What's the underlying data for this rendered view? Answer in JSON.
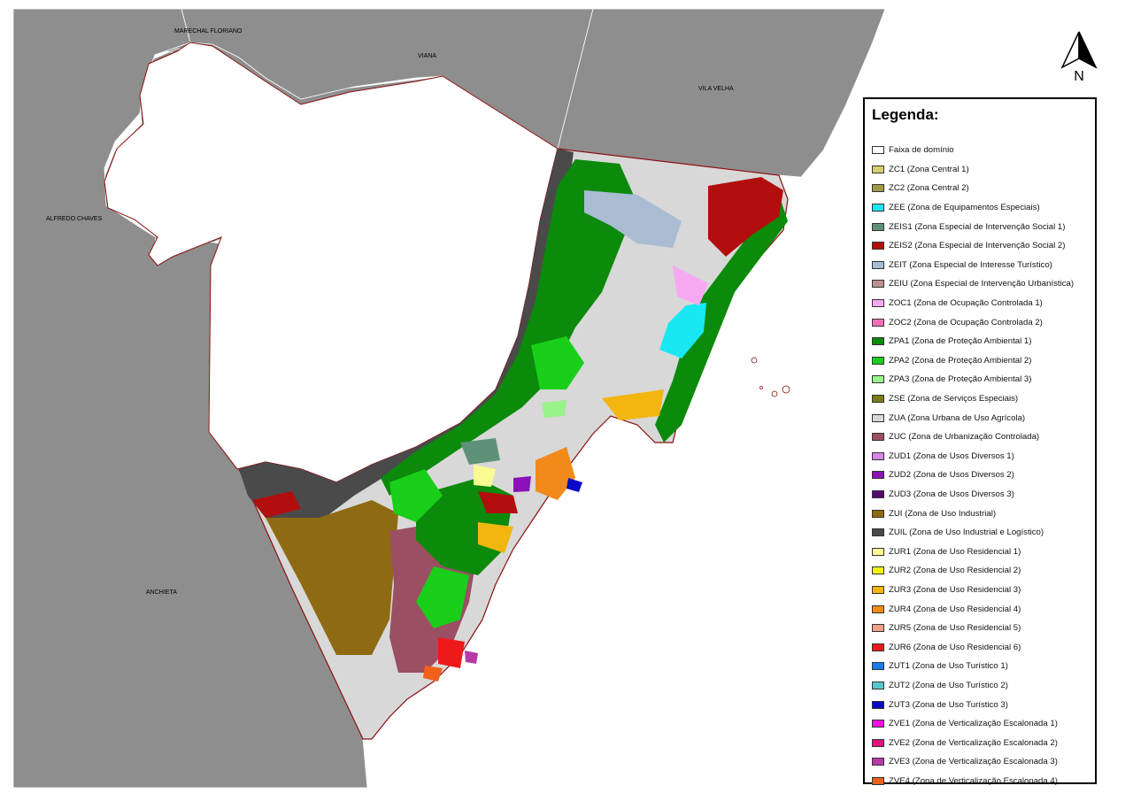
{
  "municipalities": [
    {
      "name": "MARECHAL FLORIANO",
      "id": "marechal-floriano"
    },
    {
      "name": "VIANA",
      "id": "viana"
    },
    {
      "name": "VILA VELHA",
      "id": "vila-velha"
    },
    {
      "name": "ALFREDO CHAVES",
      "id": "alfredo-chaves"
    },
    {
      "name": "ANCHIETA",
      "id": "anchieta"
    }
  ],
  "north_arrow": {
    "label": "N",
    "icon": "north-arrow-icon"
  },
  "legend": {
    "title": "Legenda:",
    "items": [
      {
        "label": "Faixa de domínio",
        "color": "#ffffff"
      },
      {
        "label": "ZC1 (Zona Central 1)",
        "color": "#d4cf72"
      },
      {
        "label": "ZC2 (Zona Central 2)",
        "color": "#9e9a48"
      },
      {
        "label": "ZEE (Zona de Equipamentos Especiais)",
        "color": "#19e8f2"
      },
      {
        "label": "ZEIS1 (Zona Especial de Intervenção Social 1)",
        "color": "#5e9278"
      },
      {
        "label": "ZEIS2 (Zona Especial de Intervenção Social 2)",
        "color": "#b20e0e"
      },
      {
        "label": "ZEIT (Zona Especial de Interesse Turístico)",
        "color": "#a9bcd2"
      },
      {
        "label": "ZEIU (Zona Especial de Intervenção Urbanística)",
        "color": "#c09090"
      },
      {
        "label": "ZOC1 (Zona de Ocupação Controlada 1)",
        "color": "#f6a9f2"
      },
      {
        "label": "ZOC2 (Zona de Ocupação Controlada 2)",
        "color": "#f070b8"
      },
      {
        "label": "ZPA1 (Zona de Proteção Ambiental 1)",
        "color": "#0b8a0b"
      },
      {
        "label": "ZPA2 (Zona de Proteção Ambiental 2)",
        "color": "#19cf19"
      },
      {
        "label": "ZPA3 (Zona de Proteção Ambiental 3)",
        "color": "#9af28a"
      },
      {
        "label": "ZSE (Zona de Serviços Especiais)",
        "color": "#7a7a1a"
      },
      {
        "label": "ZUA (Zona Urbana de Uso Agrícola)",
        "color": "#d8d8d8"
      },
      {
        "label": "ZUC (Zona de Urbanização Controlada)",
        "color": "#9a5062"
      },
      {
        "label": "ZUD1 (Zona de Usos Diversos 1)",
        "color": "#d883e6"
      },
      {
        "label": "ZUD2 (Zona de Usos Diversos 2)",
        "color": "#8a12b8"
      },
      {
        "label": "ZUD3 (Zona de Usos Diversos 3)",
        "color": "#560a6e"
      },
      {
        "label": "ZUI (Zona de Uso Industrial)",
        "color": "#8e6a12"
      },
      {
        "label": "ZUIL (Zona de Uso Industrial e Logístico)",
        "color": "#4a4a4a"
      },
      {
        "label": "ZUR1 (Zona de Uso Residencial 1)",
        "color": "#fafa92"
      },
      {
        "label": "ZUR2 (Zona de Uso Residencial 2)",
        "color": "#f2f21a"
      },
      {
        "label": "ZUR3 (Zona de Uso Residencial 3)",
        "color": "#f2b60e"
      },
      {
        "label": "ZUR4 (Zona de Uso Residencial 4)",
        "color": "#f28a1a"
      },
      {
        "label": "ZUR5 (Zona de Uso Residencial 5)",
        "color": "#f2a088"
      },
      {
        "label": "ZUR6 (Zona de Uso Residencial 6)",
        "color": "#ee1a1a"
      },
      {
        "label": "ZUT1 (Zona de Uso Turístico 1)",
        "color": "#1a7af0"
      },
      {
        "label": "ZUT2 (Zona de Uso Turístico 2)",
        "color": "#5ac6cc"
      },
      {
        "label": "ZUT3 (Zona de Uso Turístico 3)",
        "color": "#0a0ac6"
      },
      {
        "label": "ZVE1 (Zona de Verticalização Escalonada 1)",
        "color": "#ee12e0"
      },
      {
        "label": "ZVE2 (Zona de Verticalização Escalonada 2)",
        "color": "#e8107a"
      },
      {
        "label": "ZVE3 (Zona de Verticalização Escalonada 3)",
        "color": "#b83aa8"
      },
      {
        "label": "ZVE4 (Zona de Verticalização Escalonada 4)",
        "color": "#f0601a"
      }
    ]
  }
}
